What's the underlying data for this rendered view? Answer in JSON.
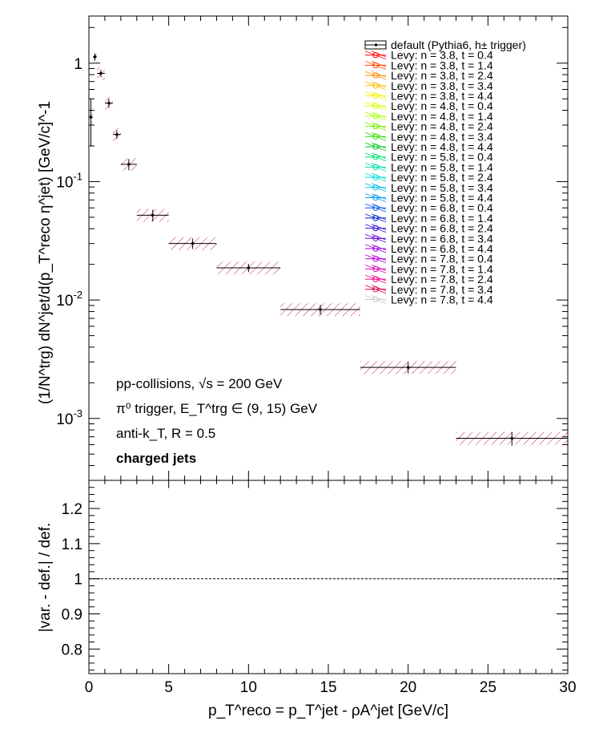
{
  "chart_data": {
    "type": "scatter",
    "top_panel": {
      "x_range": [
        0,
        30
      ],
      "y_range": [
        0.0003,
        2.5
      ],
      "y_scale": "log",
      "ylabel": "(1/N^trg) dN^jet/d(p_T^reco η^jet) [GeV/c]^-1",
      "y_tick_labels": [
        "1",
        "10^-1",
        "10^-2",
        "10^-3"
      ],
      "default_series": {
        "name": "default (Pythia6, h± trigger)",
        "points": [
          {
            "x": 0.125,
            "xw": 0.125,
            "y": 0.35,
            "yerr": 0.15
          },
          {
            "x": 0.375,
            "xw": 0.125,
            "y": 1.13,
            "yerr": 0.08
          },
          {
            "x": 0.75,
            "xw": 0.25,
            "y": 0.82,
            "yerr": 0.06
          },
          {
            "x": 1.25,
            "xw": 0.25,
            "y": 0.46,
            "yerr": 0.04
          },
          {
            "x": 1.75,
            "xw": 0.25,
            "y": 0.25,
            "yerr": 0.02
          },
          {
            "x": 2.5,
            "xw": 0.5,
            "y": 0.14,
            "yerr": 0.015
          },
          {
            "x": 4.0,
            "xw": 1.0,
            "y": 0.052,
            "yerr": 0.006
          },
          {
            "x": 6.5,
            "xw": 1.5,
            "y": 0.03,
            "yerr": 0.003
          },
          {
            "x": 10.0,
            "xw": 2.0,
            "y": 0.0187,
            "yerr": 0.0015
          },
          {
            "x": 14.5,
            "xw": 2.5,
            "y": 0.0083,
            "yerr": 0.0008
          },
          {
            "x": 20.0,
            "xw": 3.0,
            "y": 0.0027,
            "yerr": 0.0003
          },
          {
            "x": 26.5,
            "xw": 3.5,
            "y": 0.00068,
            "yerr": 9e-05
          }
        ]
      },
      "variation_series": [
        {
          "name": "Levy: n = 3.8, t = 0.4",
          "color": "#ff0000"
        },
        {
          "name": "Levy: n = 3.8, t = 1.4",
          "color": "#ff4400"
        },
        {
          "name": "Levy: n = 3.8, t = 2.4",
          "color": "#ff8800"
        },
        {
          "name": "Levy: n = 3.8, t = 3.4",
          "color": "#ffbb00"
        },
        {
          "name": "Levy: n = 3.8, t = 4.4",
          "color": "#ffee00"
        },
        {
          "name": "Levy: n = 4.8, t = 0.4",
          "color": "#ddff00"
        },
        {
          "name": "Levy: n = 4.8, t = 1.4",
          "color": "#aaff00"
        },
        {
          "name": "Levy: n = 4.8, t = 2.4",
          "color": "#77ee00"
        },
        {
          "name": "Levy: n = 4.8, t = 3.4",
          "color": "#33dd00"
        },
        {
          "name": "Levy: n = 4.8, t = 4.4",
          "color": "#00cc22"
        },
        {
          "name": "Levy: n = 5.8, t = 0.4",
          "color": "#00dd77"
        },
        {
          "name": "Levy: n = 5.8, t = 1.4",
          "color": "#00ddaa"
        },
        {
          "name": "Levy: n = 5.8, t = 2.4",
          "color": "#00dddd"
        },
        {
          "name": "Levy: n = 5.8, t = 3.4",
          "color": "#00bbee"
        },
        {
          "name": "Levy: n = 5.8, t = 4.4",
          "color": "#0099ee"
        },
        {
          "name": "Levy: n = 6.8, t = 0.4",
          "color": "#0055ee"
        },
        {
          "name": "Levy: n = 6.8, t = 1.4",
          "color": "#0022cc"
        },
        {
          "name": "Levy: n = 6.8, t = 2.4",
          "color": "#3311dd"
        },
        {
          "name": "Levy: n = 6.8, t = 3.4",
          "color": "#6600dd"
        },
        {
          "name": "Levy: n = 6.8, t = 4.4",
          "color": "#9900dd"
        },
        {
          "name": "Levy: n = 7.8, t = 0.4",
          "color": "#bb00dd"
        },
        {
          "name": "Levy: n = 7.8, t = 1.4",
          "color": "#dd00bb"
        },
        {
          "name": "Levy: n = 7.8, t = 2.4",
          "color": "#ee0088"
        },
        {
          "name": "Levy: n = 7.8, t = 3.4",
          "color": "#dd0044"
        },
        {
          "name": "Levy: n = 7.8, t = 4.4",
          "color": "#cccccc"
        }
      ],
      "annotations": {
        "line1": "pp-collisions, √s = 200 GeV",
        "line2": "π⁰ trigger, E_T^trg ∈ (9, 15) GeV",
        "line3": "anti-k_T, R = 0.5",
        "line4": "charged jets"
      }
    },
    "bottom_panel": {
      "y_range": [
        0.73,
        1.28
      ],
      "ylabel": "|var. - def.| / def.",
      "y_ticks": [
        0.8,
        0.9,
        1,
        1.1,
        1.2
      ],
      "reference_line": 1
    },
    "x_ticks": [
      0,
      5,
      10,
      15,
      20,
      25,
      30
    ],
    "xlabel": "p_T^reco = p_T^jet - ρA^jet [GeV/c]"
  }
}
